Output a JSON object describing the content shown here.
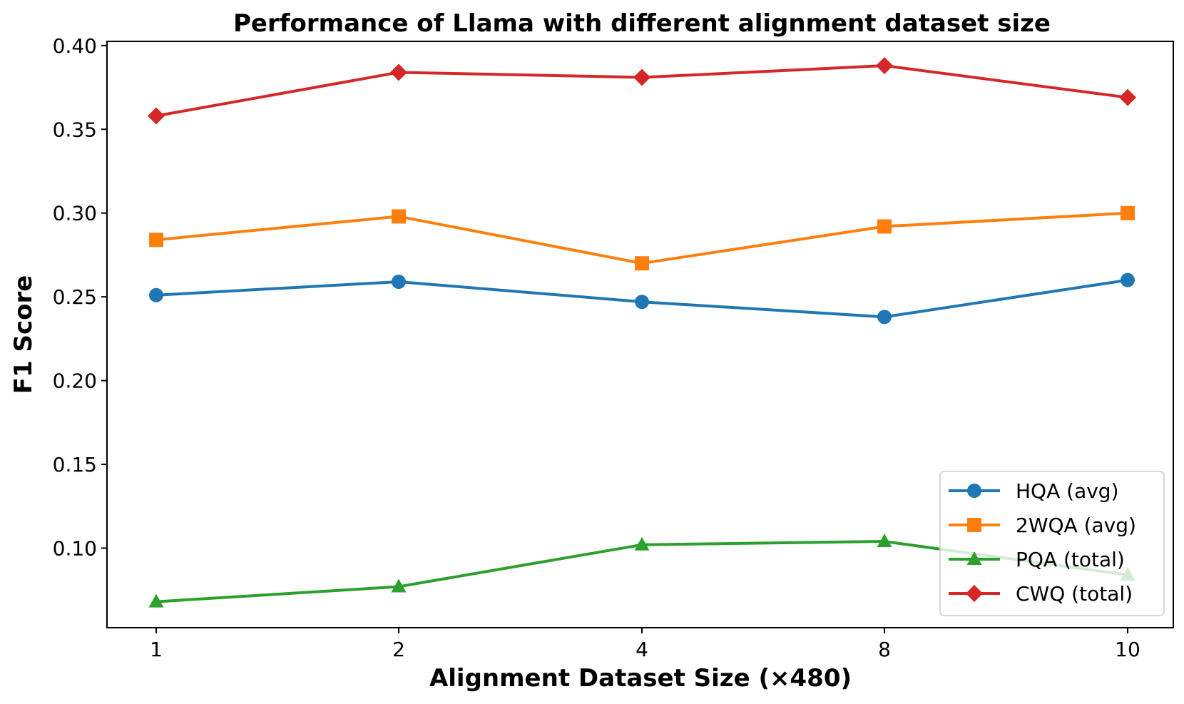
{
  "chart_data": {
    "type": "line",
    "title": "Performance of Llama with different alignment dataset size",
    "xlabel": "Alignment Dataset Size (×480)",
    "ylabel": "F1 Score",
    "categories": [
      "1",
      "2",
      "4",
      "8",
      "10"
    ],
    "ylim": [
      0.0525,
      0.4025
    ],
    "yticks": [
      "0.10",
      "0.15",
      "0.20",
      "0.25",
      "0.30",
      "0.35",
      "0.40"
    ],
    "grid": false,
    "legend_position": "lower-right",
    "series": [
      {
        "name": "HQA (avg)",
        "color": "#1f77b4",
        "marker": "circle",
        "values": [
          0.251,
          0.259,
          0.247,
          0.238,
          0.26
        ]
      },
      {
        "name": "2WQA (avg)",
        "color": "#ff7f0e",
        "marker": "square",
        "values": [
          0.284,
          0.298,
          0.27,
          0.292,
          0.3
        ]
      },
      {
        "name": "PQA (total)",
        "color": "#2ca02c",
        "marker": "triangle",
        "values": [
          0.068,
          0.077,
          0.102,
          0.104,
          0.084
        ]
      },
      {
        "name": "CWQ (total)",
        "color": "#d62728",
        "marker": "diamond",
        "values": [
          0.358,
          0.384,
          0.381,
          0.388,
          0.369
        ]
      }
    ]
  }
}
